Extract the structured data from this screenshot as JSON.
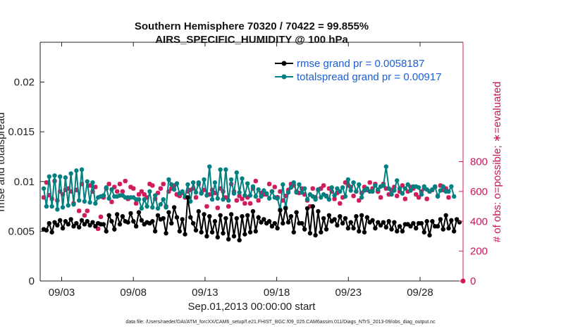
{
  "chart_data": {
    "type": "line",
    "title": "Southern Hemisphere 70320 / 70422 = 99.855%",
    "subtitle": "AIRS_SPECIFIC_HUMIDITY @ 100 hPa",
    "xlabel": "Sep.01,2013 00:00:00 start",
    "ylabel": "rmse and totalspread",
    "y2label": "# of obs: o=possible; ∗=evaluated",
    "x_ticks": [
      "09/03",
      "09/08",
      "09/13",
      "09/18",
      "09/23",
      "09/28"
    ],
    "x_tick_days": [
      3,
      8,
      13,
      18,
      23,
      28
    ],
    "xlim": [
      1.5,
      31
    ],
    "ylim": [
      0,
      0.024
    ],
    "y_ticks": [
      "0",
      "0.005",
      "0.01",
      "0.015",
      "0.02"
    ],
    "y_tick_values": [
      0,
      0.005,
      0.01,
      0.015,
      0.02
    ],
    "y2lim": [
      0,
      1600
    ],
    "y2_ticks": [
      "0",
      "200",
      "400",
      "600",
      "800"
    ],
    "y2_tick_values": [
      0,
      200,
      400,
      600,
      800
    ],
    "legend_position": "top-right",
    "colors": {
      "rmse": "#000000",
      "spread": "#008080",
      "obs": "#d01c5c",
      "legend_text": "#1a5fd6"
    },
    "series": [
      {
        "name": "rmse grand pr = 0.0058187",
        "key": "rmse",
        "values": [
          0.0052,
          0.0051,
          0.0058,
          0.0049,
          0.0059,
          0.0056,
          0.0061,
          0.0053,
          0.006,
          0.0057,
          0.0062,
          0.0055,
          0.0058,
          0.0054,
          0.0061,
          0.0057,
          0.006,
          0.0056,
          0.0059,
          0.0055,
          0.0058,
          0.0057,
          0.0057,
          0.005,
          0.0066,
          0.006,
          0.0052,
          0.0067,
          0.0057,
          0.0065,
          0.006,
          0.0059,
          0.0068,
          0.006,
          0.0055,
          0.0069,
          0.0061,
          0.0057,
          0.0059,
          0.0058,
          0.006,
          0.005,
          0.0066,
          0.0062,
          0.0063,
          0.0048,
          0.0069,
          0.0058,
          0.0074,
          0.0064,
          0.005,
          0.0062,
          0.0047,
          0.0084,
          0.0064,
          0.0058,
          0.0051,
          0.007,
          0.0049,
          0.0067,
          0.0045,
          0.0065,
          0.0049,
          0.006,
          0.0044,
          0.0066,
          0.0048,
          0.0063,
          0.0042,
          0.0067,
          0.0045,
          0.0063,
          0.0041,
          0.0065,
          0.0047,
          0.0066,
          0.0049,
          0.007,
          0.005,
          0.0064,
          0.0059,
          0.0062,
          0.0058,
          0.006,
          0.0055,
          0.0058,
          0.0053,
          0.0071,
          0.0058,
          0.0073,
          0.0059,
          0.0065,
          0.0049,
          0.0069,
          0.0058,
          0.0058,
          0.0052,
          0.0073,
          0.0048,
          0.0075,
          0.0046,
          0.007,
          0.0049,
          0.0063,
          0.0052,
          0.0066,
          0.006,
          0.0062,
          0.0056,
          0.0065,
          0.0058,
          0.0063,
          0.0053,
          0.0059,
          0.0053,
          0.0065,
          0.005,
          0.0066,
          0.0049,
          0.0064,
          0.0059,
          0.0061,
          0.0053,
          0.0059,
          0.0056,
          0.0059,
          0.0054,
          0.006,
          0.0052,
          0.0059,
          0.005,
          0.0055,
          0.005,
          0.0057,
          0.0057,
          0.0055,
          0.0058,
          0.0053,
          0.0058,
          0.0058,
          0.0049,
          0.006,
          0.0046,
          0.006,
          0.0055,
          0.0055,
          0.0062,
          0.0052,
          0.0066,
          0.0053,
          0.0061,
          0.005,
          0.0062,
          0.0059
        ]
      },
      {
        "name": "totalspread grand pr = 0.00917",
        "key": "spread",
        "values": [
          0.0093,
          0.0075,
          0.0105,
          0.0075,
          0.0106,
          0.0072,
          0.0105,
          0.0074,
          0.0104,
          0.0076,
          0.0108,
          0.0077,
          0.0111,
          0.0081,
          0.0112,
          0.008,
          0.01,
          0.0079,
          0.0099,
          0.0078,
          0.0084,
          0.0085,
          0.0086,
          0.0094,
          0.0083,
          0.0092,
          0.0085,
          0.0085,
          0.0086,
          0.0086,
          0.0084,
          0.0084,
          0.0084,
          0.0084,
          0.0082,
          0.0082,
          0.0073,
          0.0082,
          0.0075,
          0.009,
          0.0074,
          0.0086,
          0.0073,
          0.0077,
          0.0082,
          0.0074,
          0.0102,
          0.0097,
          0.0092,
          0.0098,
          0.0088,
          0.009,
          0.0085,
          0.0097,
          0.008,
          0.0099,
          0.0089,
          0.0099,
          0.0088,
          0.0102,
          0.0086,
          0.0115,
          0.0082,
          0.0099,
          0.0083,
          0.0112,
          0.0082,
          0.0112,
          0.0081,
          0.0102,
          0.0088,
          0.0109,
          0.0089,
          0.0103,
          0.0086,
          0.0098,
          0.0086,
          0.0095,
          0.0085,
          0.0092,
          0.0085,
          0.0091,
          0.0088,
          0.0083,
          0.009,
          0.0084,
          0.0083,
          0.0072,
          0.0097,
          0.0074,
          0.0089,
          0.0094,
          0.0099,
          0.0089,
          0.0097,
          0.0089,
          0.0093,
          0.0082,
          0.0087,
          0.0085,
          0.0082,
          0.0092,
          0.0084,
          0.0087,
          0.0085,
          0.0082,
          0.0094,
          0.0086,
          0.0093,
          0.009,
          0.0094,
          0.0085,
          0.0102,
          0.0091,
          0.0099,
          0.009,
          0.0097,
          0.0084,
          0.0091,
          0.0093,
          0.009,
          0.009,
          0.0096,
          0.0092,
          0.0095,
          0.0096,
          0.0115,
          0.0093,
          0.0087,
          0.0091,
          0.0101,
          0.0093,
          0.0088,
          0.0093,
          0.0097,
          0.0091,
          0.0095,
          0.0095,
          0.0094,
          0.0087,
          0.0095,
          0.0092,
          0.009,
          0.0092,
          0.0095,
          0.0085,
          0.0091,
          0.0095,
          0.009,
          0.009,
          0.0095,
          0.0085
        ]
      },
      {
        "name": "# of obs evaluated",
        "key": "evaluated",
        "axis": "right",
        "values": [
          560,
          660,
          575,
          550,
          670,
          540,
          600,
          580,
          610,
          620,
          600,
          520,
          610,
          470,
          650,
          440,
          470,
          640,
          600,
          630,
          350,
          430,
          560,
          620,
          650,
          530,
          630,
          600,
          650,
          600,
          670,
          550,
          630,
          620,
          520,
          580,
          600,
          580,
          560,
          650,
          640,
          550,
          590,
          620,
          650,
          500,
          600,
          620,
          640,
          580,
          570,
          590,
          560,
          600,
          610,
          620,
          560,
          650,
          590,
          610,
          500,
          580,
          610,
          590,
          490,
          620,
          600,
          560,
          500,
          650,
          600,
          540,
          570,
          550,
          520,
          560,
          520,
          620,
          670,
          540,
          590,
          580,
          580,
          650,
          600,
          630,
          560,
          600,
          540,
          570,
          610,
          650,
          640,
          600,
          590,
          620,
          580,
          540,
          500,
          620,
          560,
          610,
          620,
          640,
          570,
          620,
          600,
          550,
          590,
          520,
          560,
          660,
          640,
          630,
          570,
          600,
          540,
          590,
          630,
          610,
          660,
          620,
          650,
          600,
          560,
          650,
          620,
          580,
          610,
          630,
          570,
          600,
          640,
          550,
          600,
          630,
          620,
          580,
          560,
          600,
          620,
          550,
          600,
          610,
          630,
          570,
          640,
          610,
          620,
          560
        ]
      },
      {
        "name": "# of obs possible",
        "key": "possible",
        "axis": "right",
        "values": [
          560,
          660,
          575,
          550,
          670,
          540,
          600,
          580,
          610,
          620,
          600,
          520,
          610,
          470,
          650,
          440,
          470,
          640,
          600,
          630,
          350,
          430,
          560,
          620,
          650,
          530,
          630,
          600,
          650,
          600,
          670,
          550,
          630,
          620,
          520,
          580,
          600,
          580,
          560,
          650,
          640,
          550,
          590,
          620,
          650,
          500,
          600,
          620,
          640,
          580,
          570,
          590,
          560,
          600,
          610,
          620,
          560,
          650,
          590,
          610,
          500,
          580,
          610,
          590,
          490,
          620,
          600,
          560,
          500,
          650,
          600,
          540,
          570,
          550,
          520,
          560,
          520,
          620,
          670,
          540,
          590,
          580,
          580,
          650,
          600,
          630,
          560,
          600,
          540,
          570,
          610,
          650,
          640,
          600,
          590,
          620,
          580,
          540,
          500,
          620,
          560,
          610,
          620,
          640,
          570,
          620,
          600,
          550,
          590,
          520,
          560,
          660,
          640,
          630,
          570,
          600,
          540,
          590,
          630,
          610,
          660,
          620,
          650,
          600,
          560,
          650,
          620,
          580,
          610,
          630,
          570,
          600,
          640,
          550,
          600,
          630,
          620,
          580,
          560,
          600,
          620,
          550,
          600,
          610,
          630,
          570,
          640,
          610,
          620,
          560
        ]
      }
    ],
    "footnote": "data file: /Users/raeder/DAI/ATM_forcXX/CAM6_setup/f.e21.FHIST_BGC.f09_025.CAM6assim.011/Diags_NTrS_2013-09/obs_diag_output.nc"
  }
}
